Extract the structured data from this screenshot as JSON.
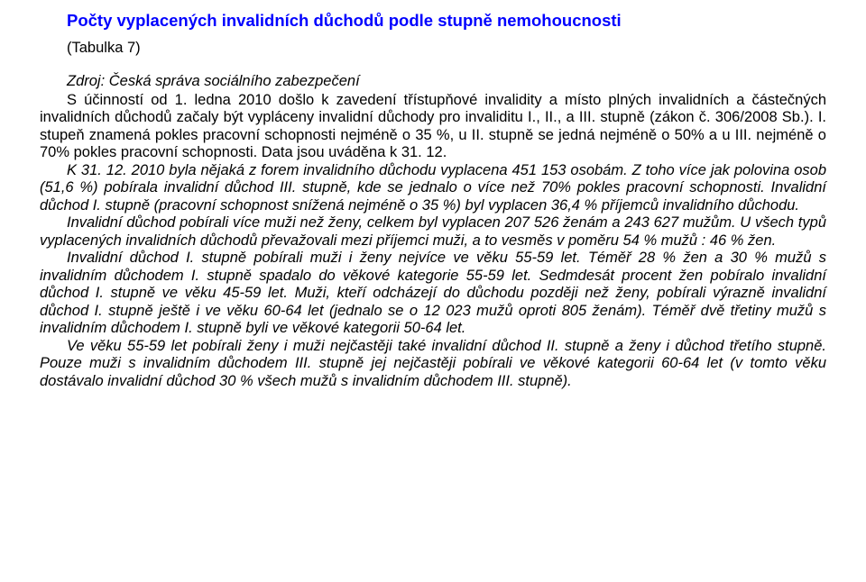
{
  "colors": {
    "title_color": "#0000ff",
    "text_color": "#000000",
    "background": "#ffffff"
  },
  "typography": {
    "font_family": "Arial",
    "title_fontsize_pt": 14,
    "body_fontsize_pt": 12.5,
    "line_height": 1.18
  },
  "title": "Počty vyplacených invalidních důchodů podle stupně nemohoucnosti",
  "subtitle": "(Tabulka 7)",
  "source_line": "Zdroj: Česká správa sociálního zabezpečení",
  "effective_line": "S účinností od 1. ledna 2010 došlo k zavedení třístupňové invalidity a místo plných invalidních a částečných invalidních důchodů začaly být vypláceny invalidní důchody pro invaliditu I., II., a III. stupně (zákon č. 306/2008 Sb.). I. stupeň znamená pokles pracovní schopnosti nejméně o 35 %, u II. stupně se jedná nejméně o 50% a u III. nejméně o 70% pokles pracovní schopnosti. Data jsou uváděna k 31. 12.",
  "paragraphs": [
    "K 31. 12. 2010 byla nějaká z forem invalidního důchodu vyplacena 451 153 osobám. Z toho více jak polovina osob (51,6 %) pobírala invalidní důchod III. stupně, kde se jednalo o více než 70% pokles pracovní schopnosti. Invalidní důchod I. stupně (pracovní schopnost snížená nejméně o 35 %) byl vyplacen 36,4 % příjemců invalidního důchodu.",
    "Invalidní důchod pobírali více muži než ženy, celkem byl vyplacen 207 526 ženám a 243 627 mužům. U všech typů vyplacených invalidních důchodů převažovali mezi příjemci muži, a to vesměs v poměru 54 % mužů : 46 % žen.",
    "Invalidní důchod I. stupně pobírali muži i ženy nejvíce ve věku 55-59 let. Téměř 28 % žen a 30 % mužů s invalidním důchodem I. stupně spadalo do věkové kategorie 55-59 let. Sedmdesát procent žen pobíralo invalidní důchod I. stupně ve věku 45-59 let. Muži, kteří odcházejí do důchodu později než ženy, pobírali výrazně invalidní důchod I. stupně ještě i ve věku 60-64 let (jednalo se o 12 023 mužů oproti 805 ženám). Téměř dvě třetiny mužů s invalidním důchodem I. stupně byli ve věkové kategorii 50-64 let.",
    "Ve věku 55-59 let pobírali ženy i muži nejčastěji také invalidní důchod II. stupně a ženy i důchod třetího stupně. Pouze muži s invalidním důchodem III. stupně jej nejčastěji pobírali ve věkové kategorii 60-64 let (v tomto věku dostávalo invalidní důchod 30 % všech mužů s invalidním důchodem III. stupně)."
  ]
}
